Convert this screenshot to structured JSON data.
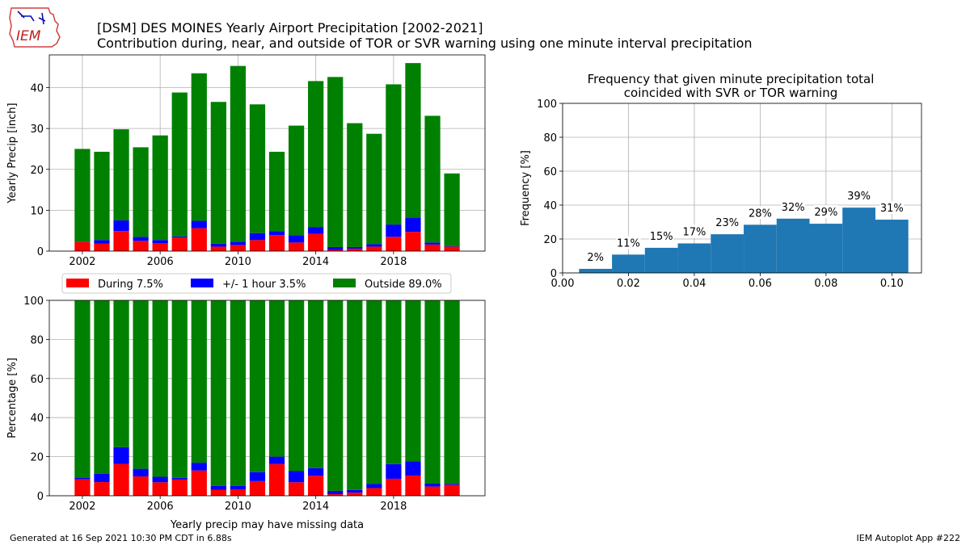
{
  "header": {
    "title_line1": "[DSM] DES MOINES Yearly Airport Precipitation [2002-2021]",
    "title_line2": "Contribution during, near, and outside of TOR or SVR warning using one minute interval precipitation",
    "logo_text": "IEM"
  },
  "footer": {
    "left": "Generated at 16 Sep 2021 10:30 PM CDT in 6.88s",
    "right": "IEM Autoplot App #222"
  },
  "colors": {
    "during": "#ff0000",
    "near": "#0000ff",
    "outside": "#008000",
    "hist": "#1f77b4",
    "grid": "#b0b0b0"
  },
  "chart_data": [
    {
      "type": "bar",
      "stacked": true,
      "ylabel": "Yearly Precip [inch]",
      "xlabel": "",
      "ylim": [
        0,
        48
      ],
      "xlim": [
        2000.3,
        2022.7
      ],
      "xticks": [
        2002,
        2006,
        2010,
        2014,
        2018
      ],
      "yticks": [
        0,
        10,
        20,
        30,
        40
      ],
      "grid": true,
      "x": [
        2002,
        2003,
        2004,
        2005,
        2006,
        2007,
        2008,
        2009,
        2010,
        2011,
        2012,
        2013,
        2014,
        2015,
        2016,
        2017,
        2018,
        2019,
        2020,
        2021
      ],
      "series": [
        {
          "name": "During 7.5%",
          "key": "during",
          "values": [
            2.2,
            1.8,
            4.9,
            2.5,
            1.9,
            3.3,
            5.6,
            1.1,
            1.5,
            2.7,
            3.9,
            2.1,
            4.2,
            0.3,
            0.6,
            1.1,
            3.5,
            4.7,
            1.6,
            1.1
          ]
        },
        {
          "name": "+/- 1 hour 3.5%",
          "key": "near",
          "values": [
            0.1,
            0.9,
            2.6,
            1.0,
            0.8,
            0.3,
            1.8,
            0.7,
            0.8,
            1.7,
            1.0,
            1.8,
            1.7,
            0.7,
            0.4,
            0.6,
            3.0,
            3.4,
            0.5,
            0.1
          ]
        },
        {
          "name": "Outside 89.0%",
          "key": "outside",
          "values": [
            22.7,
            21.6,
            22.3,
            21.9,
            25.6,
            35.2,
            36.1,
            34.7,
            43.0,
            31.5,
            19.4,
            26.8,
            35.7,
            41.6,
            30.3,
            27.0,
            34.3,
            37.9,
            31.0,
            17.8
          ]
        }
      ],
      "legend": {
        "placement": "below",
        "entries": [
          {
            "label": "During 7.5%",
            "key": "during"
          },
          {
            "label": "+/- 1 hour 3.5%",
            "key": "near"
          },
          {
            "label": "Outside 89.0%",
            "key": "outside"
          }
        ]
      }
    },
    {
      "type": "bar",
      "stacked": true,
      "ylabel": "Percentage [%]",
      "xlabel": "Yearly precip may have missing data",
      "ylim": [
        0,
        100
      ],
      "xlim": [
        2000.3,
        2022.7
      ],
      "xticks": [
        2002,
        2006,
        2010,
        2014,
        2018
      ],
      "yticks": [
        0,
        20,
        40,
        60,
        80,
        100
      ],
      "grid": true,
      "x": [
        2002,
        2003,
        2004,
        2005,
        2006,
        2007,
        2008,
        2009,
        2010,
        2011,
        2012,
        2013,
        2014,
        2015,
        2016,
        2017,
        2018,
        2019,
        2020,
        2021
      ],
      "series": [
        {
          "name": "During 7.5%",
          "key": "during",
          "values": [
            8.5,
            7.0,
            16.3,
            9.9,
            6.9,
            8.3,
            12.9,
            3.1,
            3.3,
            7.5,
            16.2,
            6.9,
            10.2,
            0.8,
            1.6,
            3.9,
            8.7,
            10.3,
            4.7,
            5.6
          ]
        },
        {
          "name": "+/- 1 hour 3.5%",
          "key": "near",
          "values": [
            0.6,
            4.3,
            8.6,
            3.9,
            2.8,
            0.9,
            4.0,
            2.0,
            1.8,
            4.6,
            3.8,
            5.7,
            3.9,
            1.7,
            1.4,
            2.1,
            7.5,
            7.4,
            1.5,
            0.5
          ]
        },
        {
          "name": "Outside 89.0%",
          "key": "outside",
          "values": [
            90.9,
            88.7,
            75.1,
            86.2,
            90.3,
            90.8,
            83.1,
            94.9,
            94.9,
            87.9,
            80.0,
            87.4,
            85.9,
            97.5,
            97.0,
            94.0,
            83.8,
            82.3,
            93.8,
            93.9
          ]
        }
      ]
    },
    {
      "type": "bar",
      "subtype": "histogram",
      "title": "Frequency that given minute precipitation total\ncoincided with SVR or TOR warning",
      "ylabel": "Frequency [%]",
      "xlabel": "",
      "xlim": [
        0.0,
        0.109
      ],
      "ylim": [
        0,
        100
      ],
      "xticks": [
        0.0,
        0.02,
        0.04,
        0.06,
        0.08,
        0.1
      ],
      "xtick_labels": [
        "0.00",
        "0.02",
        "0.04",
        "0.06",
        "0.08",
        "0.10"
      ],
      "yticks": [
        0,
        20,
        40,
        60,
        80,
        100
      ],
      "grid": true,
      "bin_edges": [
        0.005,
        0.015,
        0.025,
        0.035,
        0.045,
        0.055,
        0.065,
        0.075,
        0.085,
        0.095,
        0.105
      ],
      "values": [
        2.4,
        10.8,
        14.8,
        17.4,
        22.8,
        28.4,
        32.0,
        29.0,
        38.5,
        31.4
      ],
      "labels": [
        "2%",
        "11%",
        "15%",
        "17%",
        "23%",
        "28%",
        "32%",
        "29%",
        "39%",
        "31%"
      ]
    }
  ]
}
